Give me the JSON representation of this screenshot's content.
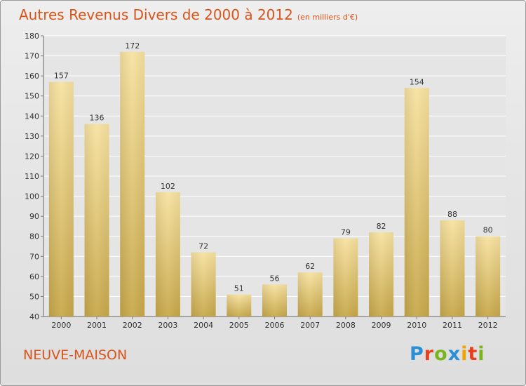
{
  "title": {
    "main": "Autres Revenus Divers de 2000 à 2012",
    "unit": "(en milliers d'€)"
  },
  "location": "NEUVE-MAISON",
  "logo": {
    "text": "Proxiti",
    "colors": [
      "#2a8fd4",
      "#e8401c",
      "#7ab51d",
      "#2a8fd4",
      "#f0a400",
      "#e8401c",
      "#7ab51d"
    ]
  },
  "colors": {
    "title": "#d9541a",
    "bar_light": "#f7e2a0",
    "bar_dark": "#c8a84a"
  },
  "chart_data": {
    "type": "bar",
    "categories": [
      "2000",
      "2001",
      "2002",
      "2003",
      "2004",
      "2005",
      "2006",
      "2007",
      "2008",
      "2009",
      "2010",
      "2011",
      "2012"
    ],
    "values": [
      157,
      136,
      172,
      102,
      72,
      51,
      56,
      62,
      79,
      82,
      154,
      88,
      80
    ],
    "ylim": [
      40,
      180
    ],
    "yticks": [
      40,
      50,
      60,
      70,
      80,
      90,
      100,
      110,
      120,
      130,
      140,
      150,
      160,
      170,
      180
    ],
    "grid": true
  }
}
